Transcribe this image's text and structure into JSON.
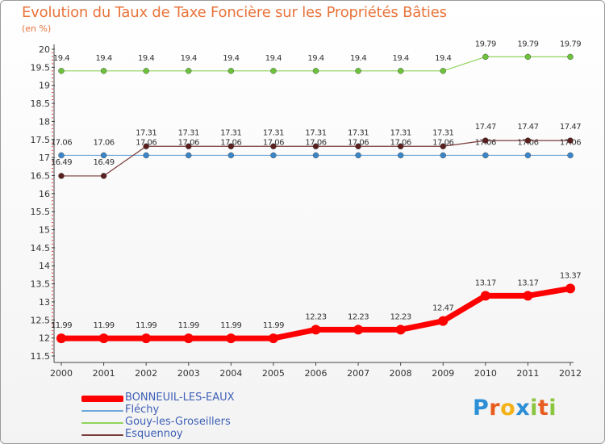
{
  "header": {
    "title": "Evolution du Taux de Taxe Foncière sur les Propriétés Bâties",
    "unit": "(en %)"
  },
  "chart_data": {
    "type": "line",
    "title": "Evolution du Taux de Taxe Foncière sur les Propriétés Bâties",
    "ylabel": "(en %)",
    "xlabel": "",
    "x": [
      "2000",
      "2001",
      "2002",
      "2003",
      "2004",
      "2005",
      "2006",
      "2007",
      "2008",
      "2009",
      "2010",
      "2011",
      "2012"
    ],
    "ylim": [
      11.5,
      20
    ],
    "yticks": [
      "11.5",
      "12",
      "12.5",
      "13",
      "13.5",
      "14",
      "14.5",
      "15",
      "15.5",
      "16",
      "16.5",
      "17",
      "17.5",
      "18",
      "18.5",
      "19",
      "19.5",
      "20"
    ],
    "grid": false,
    "legend_position": "bottom-left",
    "series": [
      {
        "name": "BONNEUIL-LES-EAUX",
        "color": "#ff0000",
        "values": [
          11.99,
          11.99,
          11.99,
          11.99,
          11.99,
          11.99,
          12.23,
          12.23,
          12.23,
          12.47,
          13.17,
          13.17,
          13.37
        ]
      },
      {
        "name": "Fléchy",
        "color": "#6fa8dc",
        "values": [
          17.06,
          17.06,
          17.06,
          17.06,
          17.06,
          17.06,
          17.06,
          17.06,
          17.06,
          17.06,
          17.06,
          17.06,
          17.06
        ]
      },
      {
        "name": "Gouy-les-Groseillers",
        "color": "#8fd45a",
        "values": [
          19.4,
          19.4,
          19.4,
          19.4,
          19.4,
          19.4,
          19.4,
          19.4,
          19.4,
          19.4,
          19.79,
          19.79,
          19.79
        ]
      },
      {
        "name": "Esquennoy",
        "color": "#7a3b3b",
        "values": [
          16.49,
          16.49,
          17.31,
          17.31,
          17.31,
          17.31,
          17.31,
          17.31,
          17.31,
          17.31,
          17.47,
          17.47,
          17.47
        ]
      }
    ]
  },
  "logo": {
    "letters": [
      {
        "char": "P",
        "color": "#2c8fd6"
      },
      {
        "char": "r",
        "color": "#e85d1f"
      },
      {
        "char": "o",
        "color": "#f3b21a"
      },
      {
        "char": "x",
        "color": "#2c8fd6"
      },
      {
        "char": "i",
        "color": "#8cc63f"
      },
      {
        "char": "t",
        "color": "#e85d1f"
      },
      {
        "char": "i",
        "color": "#8cc63f"
      }
    ]
  }
}
